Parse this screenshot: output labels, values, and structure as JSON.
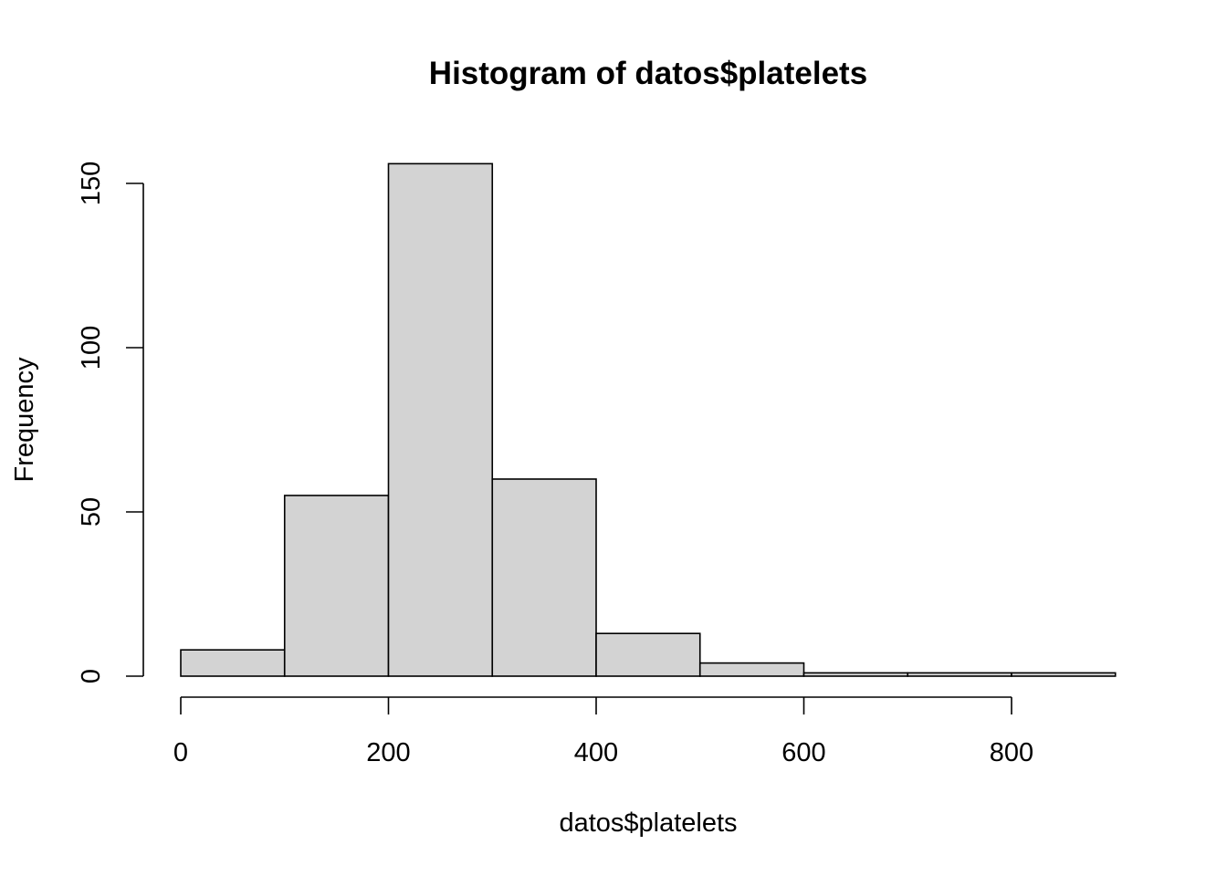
{
  "chart_data": {
    "type": "bar",
    "title": "Histogram of datos$platelets",
    "xlabel": "datos$platelets",
    "ylabel": "Frequency",
    "bins": [
      {
        "start": 0,
        "end": 100,
        "count": 8
      },
      {
        "start": 100,
        "end": 200,
        "count": 55
      },
      {
        "start": 200,
        "end": 300,
        "count": 156
      },
      {
        "start": 300,
        "end": 400,
        "count": 60
      },
      {
        "start": 400,
        "end": 500,
        "count": 13
      },
      {
        "start": 500,
        "end": 600,
        "count": 4
      },
      {
        "start": 600,
        "end": 700,
        "count": 1
      },
      {
        "start": 700,
        "end": 800,
        "count": 1
      },
      {
        "start": 800,
        "end": 900,
        "count": 1
      }
    ],
    "xlim": [
      0,
      900
    ],
    "ylim": [
      0,
      156
    ],
    "x_ticks": [
      0,
      200,
      400,
      600,
      800
    ],
    "y_ticks": [
      0,
      50,
      100,
      150
    ],
    "x_tick_labels": [
      "0",
      "200",
      "400",
      "600",
      "800"
    ],
    "y_tick_labels": [
      "0",
      "50",
      "100",
      "150"
    ],
    "grid": false,
    "bar_fill": "#d3d3d3",
    "bar_stroke": "#000000"
  }
}
